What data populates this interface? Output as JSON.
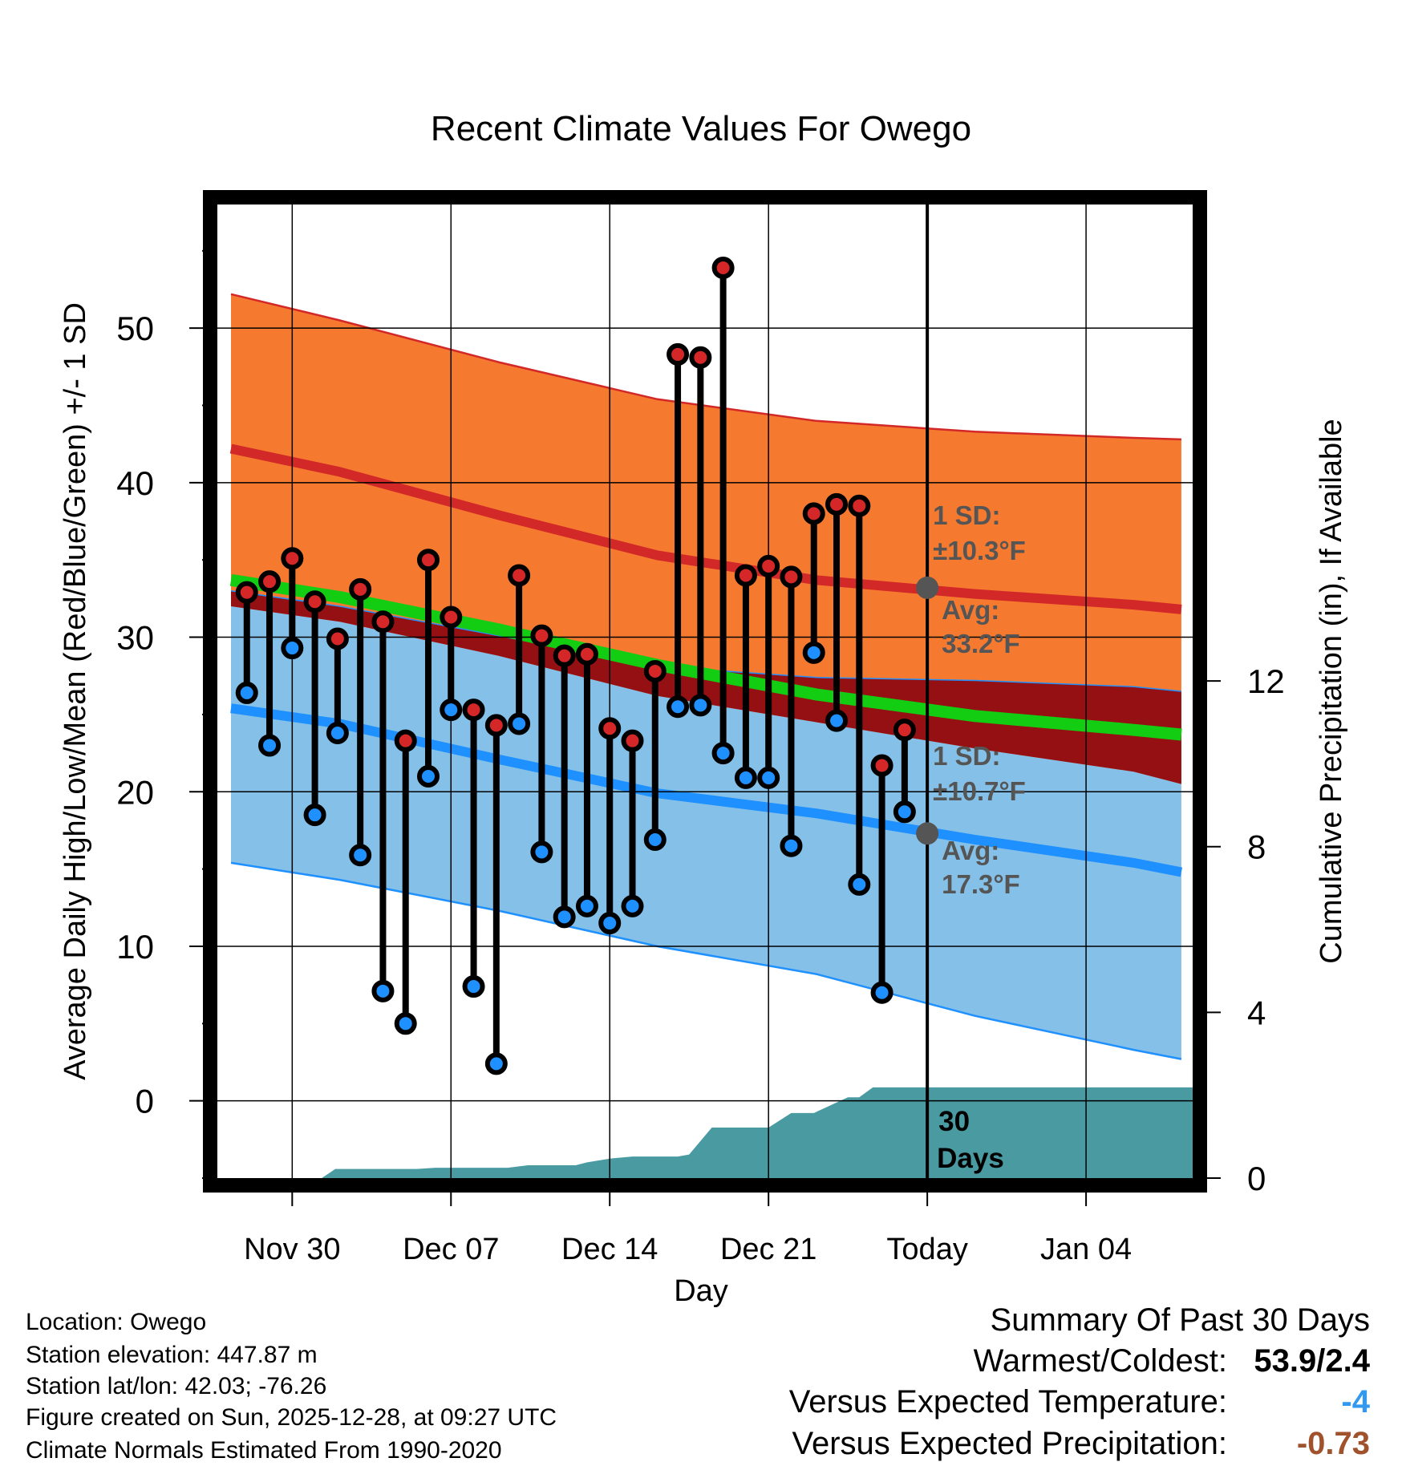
{
  "chart_data": {
    "type": "line",
    "title": "Recent Climate Values For Owego",
    "xlabel": "Day",
    "ylabel": "Average Daily High/Low/Mean (Red/Blue/Green) +/- 1 SD",
    "y2label": "Cumulative Precipitation (in), If Available",
    "ylim": [
      -5,
      58
    ],
    "y2lim": [
      0,
      23.5
    ],
    "yticks": [
      0,
      10,
      20,
      30,
      40,
      50
    ],
    "y2ticks": [
      0,
      4,
      8,
      12
    ],
    "xlim": [
      -3.3,
      39.7
    ],
    "xticks": [
      {
        "x": 0,
        "label": "Nov 30"
      },
      {
        "x": 7,
        "label": "Dec 07"
      },
      {
        "x": 14,
        "label": "Dec 14"
      },
      {
        "x": 21,
        "label": "Dec 21"
      },
      {
        "x": 28,
        "label": "Today"
      },
      {
        "x": 35,
        "label": "Jan 04"
      }
    ],
    "today_x": 28,
    "normals": {
      "x": [
        -2.7,
        2.1,
        9.1,
        16.1,
        23.1,
        30.1,
        37.1,
        39.2
      ],
      "high_avg": [
        42.2,
        40.7,
        37.9,
        35.3,
        33.7,
        32.8,
        32.1,
        31.8
      ],
      "high_upper": [
        52.2,
        50.5,
        47.8,
        45.4,
        44.0,
        43.3,
        42.9,
        42.8
      ],
      "mean_avg": [
        33.7,
        32.6,
        30.5,
        28.2,
        26.3,
        24.9,
        24.0,
        23.7
      ],
      "low_avg": [
        25.4,
        24.4,
        22.1,
        19.9,
        18.6,
        16.9,
        15.4,
        14.8
      ],
      "low_upper": [
        33.0,
        32.0,
        30.1,
        28.1,
        27.4,
        27.2,
        26.8,
        26.5
      ],
      "high_lower": [
        32.0,
        31.0,
        28.8,
        26.2,
        24.5,
        22.8,
        21.3,
        20.5
      ],
      "low_lower": [
        15.4,
        14.3,
        12.3,
        10.0,
        8.2,
        5.5,
        3.3,
        2.7
      ]
    },
    "days": {
      "x": [
        -2,
        -1,
        0,
        1,
        2,
        3,
        4,
        5,
        6,
        7,
        8,
        9,
        10,
        11,
        12,
        13,
        14,
        15,
        16,
        17,
        18,
        19,
        20,
        21,
        22,
        23,
        24,
        25,
        26,
        27
      ],
      "high": [
        32.9,
        33.6,
        35.1,
        32.3,
        29.9,
        33.1,
        31.0,
        23.3,
        35.0,
        31.3,
        25.3,
        24.3,
        34.0,
        30.1,
        28.8,
        28.9,
        24.1,
        23.3,
        27.8,
        48.3,
        48.1,
        53.9,
        34.0,
        34.6,
        33.9,
        38.0,
        38.6,
        38.5,
        21.7,
        24.0
      ],
      "low": [
        26.4,
        23.0,
        29.3,
        18.5,
        23.8,
        15.9,
        7.1,
        5.0,
        21.0,
        25.3,
        7.4,
        2.4,
        24.4,
        16.1,
        11.9,
        12.6,
        11.5,
        12.6,
        16.9,
        25.5,
        25.6,
        22.5,
        20.9,
        20.9,
        16.5,
        29.0,
        24.6,
        14.0,
        7.0,
        18.7
      ]
    },
    "precip": {
      "x": [
        -3.3,
        1.3,
        1.9,
        5.5,
        6.3,
        9.5,
        10.4,
        12.5,
        13.0,
        14.0,
        15.0,
        17.0,
        17.5,
        18.5,
        19.0,
        21.0,
        22.0,
        23.0,
        24.5,
        25.0,
        25.6,
        27.0,
        28.0,
        39.7
      ],
      "cum": [
        0.0,
        0.0,
        0.22,
        0.22,
        0.25,
        0.25,
        0.31,
        0.31,
        0.38,
        0.47,
        0.52,
        0.52,
        0.57,
        1.22,
        1.22,
        1.22,
        1.57,
        1.57,
        1.95,
        1.95,
        2.19,
        2.19,
        2.19,
        2.19
      ]
    },
    "annotations": {
      "high_sd": "1 SD:",
      "high_sd_val": "±10.3°F",
      "high_avg": "Avg:",
      "high_avg_val": "33.2°F",
      "low_sd": "1 SD:",
      "low_sd_val": "±10.7°F",
      "low_avg": "Avg:",
      "low_avg_val": "17.3°F",
      "days_num": "30",
      "days_word": "Days",
      "today_high": 33.2,
      "today_low": 17.3
    },
    "colors": {
      "high_band": "#f57a30",
      "high_line": "#d22828",
      "overlap_band": "#951013",
      "low_band": "#84c0e7",
      "low_line": "#1e90ff",
      "mean_line": "#13cd13",
      "precip": "#4a9aa2",
      "high_dot": "#d62728",
      "low_dot": "#1e90ff",
      "annot": "#555555"
    }
  },
  "info": {
    "location": "Location: Owego",
    "elevation": "Station elevation: 447.87 m",
    "latlon": "Station lat/lon: 42.03; -76.26",
    "created": "Figure created on Sun, 2025-12-28, at 09:27 UTC",
    "normals": "Climate Normals Estimated From 1990-2020"
  },
  "summary": {
    "title": "Summary Of Past 30 Days",
    "warmest_label": "Warmest/Coldest:",
    "warmest_value": "53.9/2.4",
    "temp_label": "Versus Expected Temperature:",
    "temp_value": "-4",
    "temp_color": "#3399ee",
    "precip_label": "Versus Expected Precipitation:",
    "precip_value": "-0.73",
    "precip_color": "#a0522d"
  }
}
